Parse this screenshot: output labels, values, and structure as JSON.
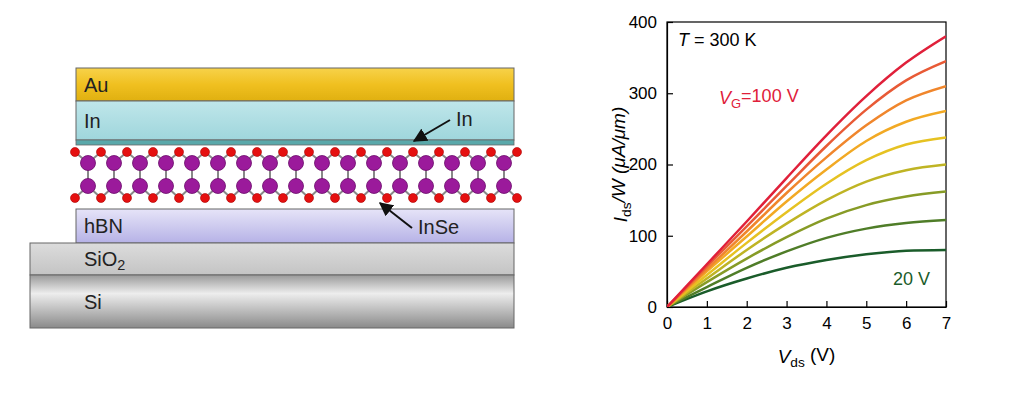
{
  "chart_data": {
    "type": "line",
    "xlabel": [
      "V",
      "ds",
      " (V)"
    ],
    "ylabel": [
      "I",
      "ds",
      "/W (μA/μm)"
    ],
    "annotations": [
      {
        "text": [
          "T",
          " = 300 K"
        ],
        "color": "#000000"
      },
      {
        "text": [
          "V",
          "G",
          "=100 V"
        ],
        "color": "#e0203a"
      },
      {
        "text": [
          "20 V"
        ],
        "color": "#1a5c2a"
      }
    ],
    "x": [
      0,
      1,
      2,
      3,
      4,
      5,
      6,
      7
    ],
    "xlim": [
      0,
      7
    ],
    "xticks": [
      0,
      1,
      2,
      3,
      4,
      5,
      6,
      7
    ],
    "ylim": [
      0,
      400
    ],
    "yticks": [
      0,
      100,
      200,
      300,
      400
    ],
    "series": [
      {
        "color": "#1a5c2a",
        "values": [
          0,
          22,
          40,
          55,
          66,
          74,
          79,
          80
        ]
      },
      {
        "color": "#4f7d28",
        "values": [
          0,
          28,
          55,
          78,
          97,
          110,
          118,
          122
        ]
      },
      {
        "color": "#879b26",
        "values": [
          0,
          35,
          68,
          98,
          124,
          143,
          155,
          162
        ]
      },
      {
        "color": "#bfb424",
        "values": [
          0,
          40,
          80,
          117,
          150,
          176,
          192,
          200
        ]
      },
      {
        "color": "#e6c222",
        "values": [
          0,
          45,
          90,
          133,
          173,
          206,
          228,
          238
        ]
      },
      {
        "color": "#f2a924",
        "values": [
          0,
          50,
          99,
          148,
          193,
          233,
          260,
          275
        ]
      },
      {
        "color": "#f0862c",
        "values": [
          0,
          53,
          106,
          160,
          210,
          255,
          290,
          310
        ]
      },
      {
        "color": "#e85a36",
        "values": [
          0,
          57,
          113,
          170,
          226,
          277,
          318,
          345
        ]
      },
      {
        "color": "#e0203a",
        "values": [
          0,
          60,
          120,
          181,
          241,
          296,
          343,
          380
        ]
      }
    ]
  },
  "diagram": {
    "layers": [
      {
        "label": [
          "Au"
        ]
      },
      {
        "label": [
          "In"
        ]
      },
      {
        "label": [
          "hBN"
        ]
      },
      {
        "label": [
          "SiO",
          "2"
        ]
      },
      {
        "label": [
          "Si"
        ]
      }
    ],
    "annotations": [
      {
        "label": [
          "In"
        ]
      },
      {
        "label": [
          "InSe"
        ]
      }
    ]
  }
}
